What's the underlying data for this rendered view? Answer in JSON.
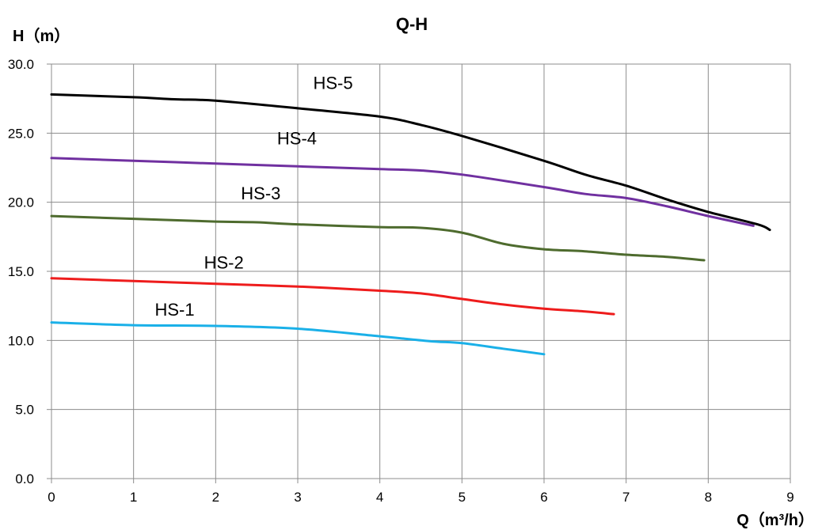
{
  "chart_data": {
    "type": "line",
    "title": "Q-H",
    "ylabel": "H（m）",
    "xlabel": "Q（m³/h）",
    "xlim": [
      0,
      9
    ],
    "ylim": [
      0,
      30
    ],
    "xticks": [
      "0",
      "1",
      "2",
      "3",
      "4",
      "5",
      "6",
      "7",
      "8",
      "9"
    ],
    "yticks": [
      "0.0",
      "5.0",
      "10.0",
      "15.0",
      "20.0",
      "25.0",
      "30.0"
    ],
    "grid": true,
    "legend": "none",
    "series": [
      {
        "name": "HS-1",
        "color": "#1ab0e8",
        "label_at": [
          1.5,
          11.8
        ],
        "points": [
          [
            0,
            11.3
          ],
          [
            1,
            11.1
          ],
          [
            2,
            11.05
          ],
          [
            3,
            10.85
          ],
          [
            4,
            10.3
          ],
          [
            4.6,
            9.95
          ],
          [
            5,
            9.8
          ],
          [
            5.5,
            9.4
          ],
          [
            6,
            9.0
          ]
        ]
      },
      {
        "name": "HS-2",
        "color": "#ee1c1c",
        "label_at": [
          2.1,
          15.2
        ],
        "points": [
          [
            0,
            14.5
          ],
          [
            1,
            14.3
          ],
          [
            2,
            14.1
          ],
          [
            3,
            13.9
          ],
          [
            4,
            13.6
          ],
          [
            4.5,
            13.4
          ],
          [
            5,
            13.0
          ],
          [
            5.5,
            12.6
          ],
          [
            6,
            12.3
          ],
          [
            6.5,
            12.1
          ],
          [
            6.85,
            11.9
          ]
        ]
      },
      {
        "name": "HS-3",
        "color": "#4e6b2e",
        "label_at": [
          2.55,
          20.2
        ],
        "points": [
          [
            0,
            19.0
          ],
          [
            1,
            18.8
          ],
          [
            2,
            18.6
          ],
          [
            2.5,
            18.55
          ],
          [
            3,
            18.4
          ],
          [
            4,
            18.2
          ],
          [
            4.5,
            18.15
          ],
          [
            5,
            17.8
          ],
          [
            5.5,
            17.0
          ],
          [
            6,
            16.6
          ],
          [
            6.5,
            16.45
          ],
          [
            7,
            16.2
          ],
          [
            7.5,
            16.05
          ],
          [
            7.95,
            15.8
          ]
        ]
      },
      {
        "name": "HS-4",
        "color": "#7030a0",
        "label_at": [
          2.99,
          24.2
        ],
        "points": [
          [
            0,
            23.2
          ],
          [
            1,
            23.0
          ],
          [
            2,
            22.8
          ],
          [
            3,
            22.6
          ],
          [
            4,
            22.4
          ],
          [
            4.5,
            22.3
          ],
          [
            5,
            22.0
          ],
          [
            6,
            21.1
          ],
          [
            6.5,
            20.6
          ],
          [
            7,
            20.3
          ],
          [
            7.5,
            19.7
          ],
          [
            8,
            19.0
          ],
          [
            8.55,
            18.3
          ]
        ]
      },
      {
        "name": "HS-5",
        "color": "#000000",
        "label_at": [
          3.43,
          28.2
        ],
        "points": [
          [
            0,
            27.8
          ],
          [
            1,
            27.6
          ],
          [
            1.5,
            27.45
          ],
          [
            2,
            27.35
          ],
          [
            3,
            26.8
          ],
          [
            4,
            26.2
          ],
          [
            4.5,
            25.6
          ],
          [
            5,
            24.8
          ],
          [
            6,
            23.0
          ],
          [
            6.5,
            22.0
          ],
          [
            7,
            21.2
          ],
          [
            7.5,
            20.2
          ],
          [
            8,
            19.3
          ],
          [
            8.6,
            18.4
          ],
          [
            8.75,
            18.0
          ]
        ]
      }
    ]
  }
}
